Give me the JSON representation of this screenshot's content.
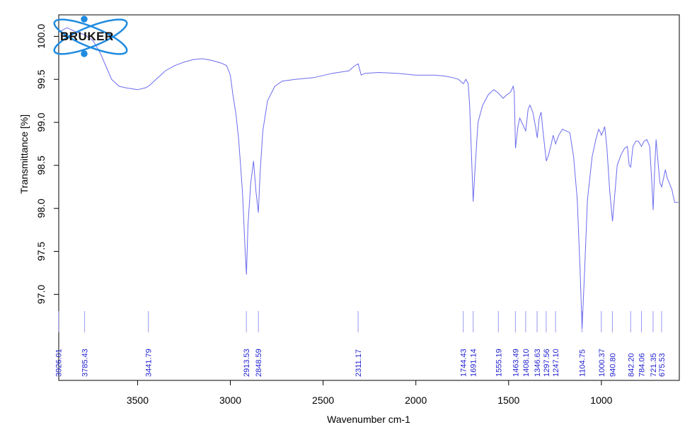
{
  "chart_data": {
    "type": "line",
    "title": "",
    "xlabel": "Wavenumber cm-1",
    "ylabel": "Transmittance [%]",
    "xlim": [
      3925,
      580
    ],
    "ylim": [
      96.0,
      100.25
    ],
    "x_reversed": true,
    "x_ticks": [
      3500,
      3000,
      2500,
      2000,
      1500,
      1000
    ],
    "x_tick_labels": [
      "3500",
      "3000",
      "2500",
      "2000",
      "1500",
      "1000"
    ],
    "y_ticks": [
      97.0,
      97.5,
      98.0,
      98.5,
      99.0,
      99.5,
      100.0
    ],
    "y_tick_labels": [
      "97.0",
      "97.5",
      "98.0",
      "98.5",
      "99.0",
      "99.5",
      "100.0"
    ],
    "grid": false,
    "series": [
      {
        "color": "#6b6bef",
        "points": [
          [
            3925,
            100.05
          ],
          [
            3880,
            100.1
          ],
          [
            3830,
            100.05
          ],
          [
            3785,
            100.02
          ],
          [
            3740,
            99.95
          ],
          [
            3700,
            99.8
          ],
          [
            3670,
            99.65
          ],
          [
            3640,
            99.5
          ],
          [
            3600,
            99.42
          ],
          [
            3560,
            99.4
          ],
          [
            3500,
            99.38
          ],
          [
            3460,
            99.4
          ],
          [
            3441,
            99.42
          ],
          [
            3400,
            99.5
          ],
          [
            3350,
            99.6
          ],
          [
            3300,
            99.66
          ],
          [
            3250,
            99.7
          ],
          [
            3200,
            99.73
          ],
          [
            3150,
            99.74
          ],
          [
            3100,
            99.72
          ],
          [
            3050,
            99.69
          ],
          [
            3020,
            99.66
          ],
          [
            3000,
            99.55
          ],
          [
            2985,
            99.3
          ],
          [
            2970,
            99.1
          ],
          [
            2955,
            98.8
          ],
          [
            2935,
            98.2
          ],
          [
            2920,
            97.5
          ],
          [
            2913,
            97.23
          ],
          [
            2905,
            97.8
          ],
          [
            2890,
            98.3
          ],
          [
            2875,
            98.55
          ],
          [
            2862,
            98.2
          ],
          [
            2849,
            97.95
          ],
          [
            2840,
            98.4
          ],
          [
            2825,
            98.9
          ],
          [
            2800,
            99.25
          ],
          [
            2760,
            99.42
          ],
          [
            2720,
            99.48
          ],
          [
            2650,
            99.5
          ],
          [
            2550,
            99.52
          ],
          [
            2450,
            99.57
          ],
          [
            2360,
            99.6
          ],
          [
            2335,
            99.65
          ],
          [
            2311,
            99.68
          ],
          [
            2295,
            99.55
          ],
          [
            2275,
            99.57
          ],
          [
            2200,
            99.58
          ],
          [
            2100,
            99.57
          ],
          [
            2000,
            99.55
          ],
          [
            1900,
            99.55
          ],
          [
            1850,
            99.54
          ],
          [
            1800,
            99.52
          ],
          [
            1770,
            99.5
          ],
          [
            1750,
            99.46
          ],
          [
            1744,
            99.45
          ],
          [
            1730,
            99.5
          ],
          [
            1718,
            99.45
          ],
          [
            1710,
            99.2
          ],
          [
            1700,
            98.6
          ],
          [
            1691,
            98.08
          ],
          [
            1680,
            98.5
          ],
          [
            1665,
            99.0
          ],
          [
            1640,
            99.2
          ],
          [
            1610,
            99.32
          ],
          [
            1580,
            99.38
          ],
          [
            1555,
            99.34
          ],
          [
            1530,
            99.28
          ],
          [
            1510,
            99.32
          ],
          [
            1490,
            99.35
          ],
          [
            1475,
            99.42
          ],
          [
            1470,
            99.35
          ],
          [
            1463,
            98.7
          ],
          [
            1450,
            98.95
          ],
          [
            1440,
            99.05
          ],
          [
            1425,
            98.98
          ],
          [
            1408,
            98.9
          ],
          [
            1395,
            99.15
          ],
          [
            1385,
            99.2
          ],
          [
            1370,
            99.12
          ],
          [
            1355,
            98.95
          ],
          [
            1346,
            98.82
          ],
          [
            1335,
            99.05
          ],
          [
            1325,
            99.12
          ],
          [
            1315,
            98.9
          ],
          [
            1297,
            98.55
          ],
          [
            1285,
            98.62
          ],
          [
            1270,
            98.75
          ],
          [
            1260,
            98.85
          ],
          [
            1247,
            98.75
          ],
          [
            1230,
            98.85
          ],
          [
            1210,
            98.92
          ],
          [
            1190,
            98.9
          ],
          [
            1170,
            98.88
          ],
          [
            1150,
            98.6
          ],
          [
            1130,
            98.1
          ],
          [
            1115,
            97.3
          ],
          [
            1104,
            96.6
          ],
          [
            1090,
            97.3
          ],
          [
            1075,
            98.1
          ],
          [
            1050,
            98.6
          ],
          [
            1030,
            98.8
          ],
          [
            1015,
            98.92
          ],
          [
            1005,
            98.88
          ],
          [
            1000,
            98.85
          ],
          [
            990,
            98.9
          ],
          [
            982,
            98.95
          ],
          [
            970,
            98.7
          ],
          [
            955,
            98.2
          ],
          [
            940,
            97.85
          ],
          [
            930,
            98.1
          ],
          [
            915,
            98.5
          ],
          [
            895,
            98.62
          ],
          [
            875,
            98.7
          ],
          [
            860,
            98.72
          ],
          [
            850,
            98.5
          ],
          [
            842,
            98.48
          ],
          [
            830,
            98.72
          ],
          [
            815,
            98.78
          ],
          [
            800,
            98.78
          ],
          [
            784,
            98.72
          ],
          [
            770,
            98.78
          ],
          [
            755,
            98.8
          ],
          [
            740,
            98.72
          ],
          [
            728,
            98.3
          ],
          [
            721,
            97.98
          ],
          [
            712,
            98.5
          ],
          [
            705,
            98.8
          ],
          [
            697,
            98.6
          ],
          [
            685,
            98.3
          ],
          [
            675,
            98.25
          ],
          [
            665,
            98.35
          ],
          [
            655,
            98.45
          ],
          [
            645,
            98.35
          ],
          [
            635,
            98.3
          ],
          [
            620,
            98.22
          ],
          [
            605,
            98.07
          ],
          [
            585,
            98.07
          ]
        ]
      }
    ],
    "peaks": [
      3926.01,
      3785.43,
      3441.79,
      2913.53,
      2848.59,
      2311.17,
      1744.43,
      1691.14,
      1555.19,
      1463.49,
      1408.1,
      1346.63,
      1297.56,
      1247.1,
      1104.75,
      1000.37,
      940.8,
      842.2,
      784.06,
      721.35,
      675.53
    ],
    "peak_labels": [
      "3926.01",
      "3785.43",
      "3441.79",
      "2913.53",
      "2848.59",
      "2311.17",
      "1744.43",
      "1691.14",
      "1555.19",
      "1463.49",
      "1408.10",
      "1346.63",
      "1297.56",
      "1247.10",
      "1104.75",
      "1000.37",
      "940.80",
      "842.20",
      "784.06",
      "721.35",
      "675.53"
    ]
  },
  "logo": {
    "text": "BRUKER",
    "color": "#1f8be0"
  }
}
